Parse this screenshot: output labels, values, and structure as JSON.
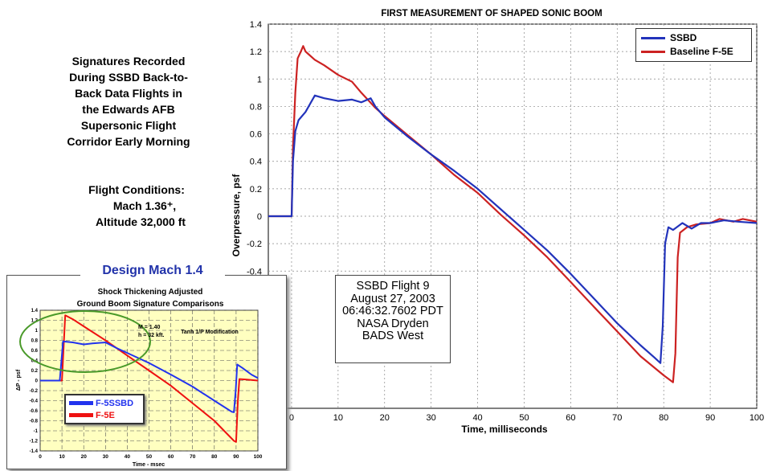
{
  "left_text": {
    "description_lines": [
      "Signatures Recorded",
      "During SSBD Back-to-",
      "Back Data Flights in",
      "the Edwards AFB",
      "Supersonic Flight",
      "Corridor Early Morning"
    ],
    "conditions_lines": [
      "Flight Conditions:",
      "Mach 1.36⁺,",
      "Altitude 32,000 ft"
    ]
  },
  "annotation_lines": [
    "SSBD Flight 9",
    "August 27, 2003",
    "06:46:32.7602 PDT",
    "NASA Dryden",
    "BADS West"
  ],
  "inset_header": "Design Mach 1.4",
  "colors": {
    "ssbd": "#2233bb",
    "f5e": "#cc2222",
    "inset_bg": "#ffffc0",
    "ellipse": "#4a9a2a"
  },
  "chart_data": [
    {
      "type": "line",
      "title": "FIRST MEASUREMENT OF SHAPED SONIC BOOM",
      "xlabel": "Time, milliseconds",
      "ylabel": "Overpressure, psf",
      "xlim": [
        -5,
        100
      ],
      "ylim": [
        -1.4,
        1.4
      ],
      "xticks": [
        0,
        10,
        20,
        30,
        40,
        50,
        60,
        70,
        80,
        90,
        100
      ],
      "yticks": [
        -0.4,
        -0.2,
        0,
        0.2,
        0.4,
        0.6,
        0.8,
        1,
        1.2,
        1.4
      ],
      "grid": true,
      "legend": "top-right",
      "series": [
        {
          "name": "SSBD",
          "points": [
            [
              -5,
              0
            ],
            [
              0,
              0
            ],
            [
              0.3,
              0.4
            ],
            [
              0.8,
              0.62
            ],
            [
              1.5,
              0.7
            ],
            [
              3,
              0.76
            ],
            [
              4.5,
              0.85
            ],
            [
              5,
              0.88
            ],
            [
              7,
              0.86
            ],
            [
              10,
              0.84
            ],
            [
              13,
              0.85
            ],
            [
              15,
              0.83
            ],
            [
              17,
              0.86
            ],
            [
              18,
              0.8
            ],
            [
              20,
              0.72
            ],
            [
              25,
              0.58
            ],
            [
              30,
              0.45
            ],
            [
              35,
              0.33
            ],
            [
              40,
              0.2
            ],
            [
              45,
              0.05
            ],
            [
              50,
              -0.1
            ],
            [
              55,
              -0.25
            ],
            [
              60,
              -0.42
            ],
            [
              65,
              -0.6
            ],
            [
              70,
              -0.78
            ],
            [
              75,
              -0.94
            ],
            [
              78,
              -1.03
            ],
            [
              79.3,
              -1.07
            ],
            [
              79.8,
              -0.8
            ],
            [
              80.3,
              -0.2
            ],
            [
              81,
              -0.08
            ],
            [
              82,
              -0.1
            ],
            [
              84,
              -0.05
            ],
            [
              86,
              -0.09
            ],
            [
              88,
              -0.05
            ],
            [
              90,
              -0.05
            ],
            [
              93,
              -0.03
            ],
            [
              96,
              -0.04
            ],
            [
              100,
              -0.05
            ]
          ]
        },
        {
          "name": "Baseline F-5E",
          "points": [
            [
              -5,
              0
            ],
            [
              0,
              0
            ],
            [
              0.3,
              0.5
            ],
            [
              0.8,
              0.9
            ],
            [
              1.3,
              1.15
            ],
            [
              2,
              1.2
            ],
            [
              2.5,
              1.24
            ],
            [
              3,
              1.2
            ],
            [
              5,
              1.14
            ],
            [
              7,
              1.1
            ],
            [
              10,
              1.03
            ],
            [
              13,
              0.98
            ],
            [
              15,
              0.9
            ],
            [
              18,
              0.79
            ],
            [
              20,
              0.73
            ],
            [
              25,
              0.59
            ],
            [
              30,
              0.45
            ],
            [
              35,
              0.3
            ],
            [
              40,
              0.17
            ],
            [
              45,
              0.01
            ],
            [
              50,
              -0.14
            ],
            [
              55,
              -0.3
            ],
            [
              60,
              -0.48
            ],
            [
              65,
              -0.66
            ],
            [
              70,
              -0.84
            ],
            [
              75,
              -1.02
            ],
            [
              80,
              -1.16
            ],
            [
              82,
              -1.21
            ],
            [
              82.5,
              -1.0
            ],
            [
              83,
              -0.3
            ],
            [
              83.5,
              -0.12
            ],
            [
              85,
              -0.08
            ],
            [
              87,
              -0.06
            ],
            [
              90,
              -0.05
            ],
            [
              92,
              -0.02
            ],
            [
              95,
              -0.04
            ],
            [
              97,
              -0.02
            ],
            [
              100,
              -0.04
            ]
          ]
        }
      ]
    },
    {
      "type": "line",
      "title": "Shock Thickening Adjusted Ground Boom Signature Comparisons",
      "xlabel": "Time - msec",
      "ylabel": "ΔP - psf",
      "xlim": [
        0,
        100
      ],
      "ylim": [
        -1.4,
        1.4
      ],
      "xticks": [
        0,
        10,
        20,
        30,
        40,
        50,
        60,
        70,
        80,
        90,
        100
      ],
      "xtick_labels": [
        "0",
        "10",
        "20",
        "30",
        "40",
        "50",
        "60",
        "70",
        "80",
        "90",
        "100"
      ],
      "yticks": [
        -1.4,
        -1.2,
        -1,
        -0.8,
        -0.6,
        -0.4,
        -0.2,
        0,
        0.2,
        0.4,
        0.6,
        0.8,
        1,
        1.2,
        1.4
      ],
      "ytick_labels": [
        "-1.4",
        "-1.2",
        "-1",
        "-0.8",
        "-0.6",
        "-0.4",
        "-0.2",
        "0",
        "0.2",
        "0.4",
        "0.6",
        "0.8",
        "1",
        "1.2",
        "1.4"
      ],
      "annotations": [
        "M = 1.40",
        "h = 32 kft.",
        "Tanh 1/P Modification"
      ],
      "grid": true,
      "series": [
        {
          "name": "F-5SSBD",
          "points": [
            [
              0,
              0
            ],
            [
              9,
              0
            ],
            [
              10.5,
              0.78
            ],
            [
              15,
              0.76
            ],
            [
              20,
              0.72
            ],
            [
              24,
              0.74
            ],
            [
              27,
              0.75
            ],
            [
              30,
              0.76
            ],
            [
              35,
              0.65
            ],
            [
              40,
              0.55
            ],
            [
              50,
              0.35
            ],
            [
              60,
              0.12
            ],
            [
              70,
              -0.12
            ],
            [
              80,
              -0.4
            ],
            [
              88,
              -0.62
            ],
            [
              89,
              -0.63
            ],
            [
              89.8,
              -0.2
            ],
            [
              90.5,
              0.32
            ],
            [
              93,
              0.25
            ],
            [
              97,
              0.12
            ],
            [
              100,
              0.05
            ]
          ]
        },
        {
          "name": "F-5E",
          "points": [
            [
              0,
              0
            ],
            [
              10,
              0
            ],
            [
              11.5,
              1.3
            ],
            [
              15,
              1.22
            ],
            [
              20,
              1.08
            ],
            [
              30,
              0.8
            ],
            [
              40,
              0.5
            ],
            [
              50,
              0.2
            ],
            [
              60,
              -0.1
            ],
            [
              70,
              -0.45
            ],
            [
              80,
              -0.8
            ],
            [
              89,
              -1.2
            ],
            [
              90,
              -1.22
            ],
            [
              90.8,
              -0.4
            ],
            [
              91.5,
              0.03
            ],
            [
              95,
              0.02
            ],
            [
              100,
              0
            ]
          ]
        }
      ]
    }
  ]
}
